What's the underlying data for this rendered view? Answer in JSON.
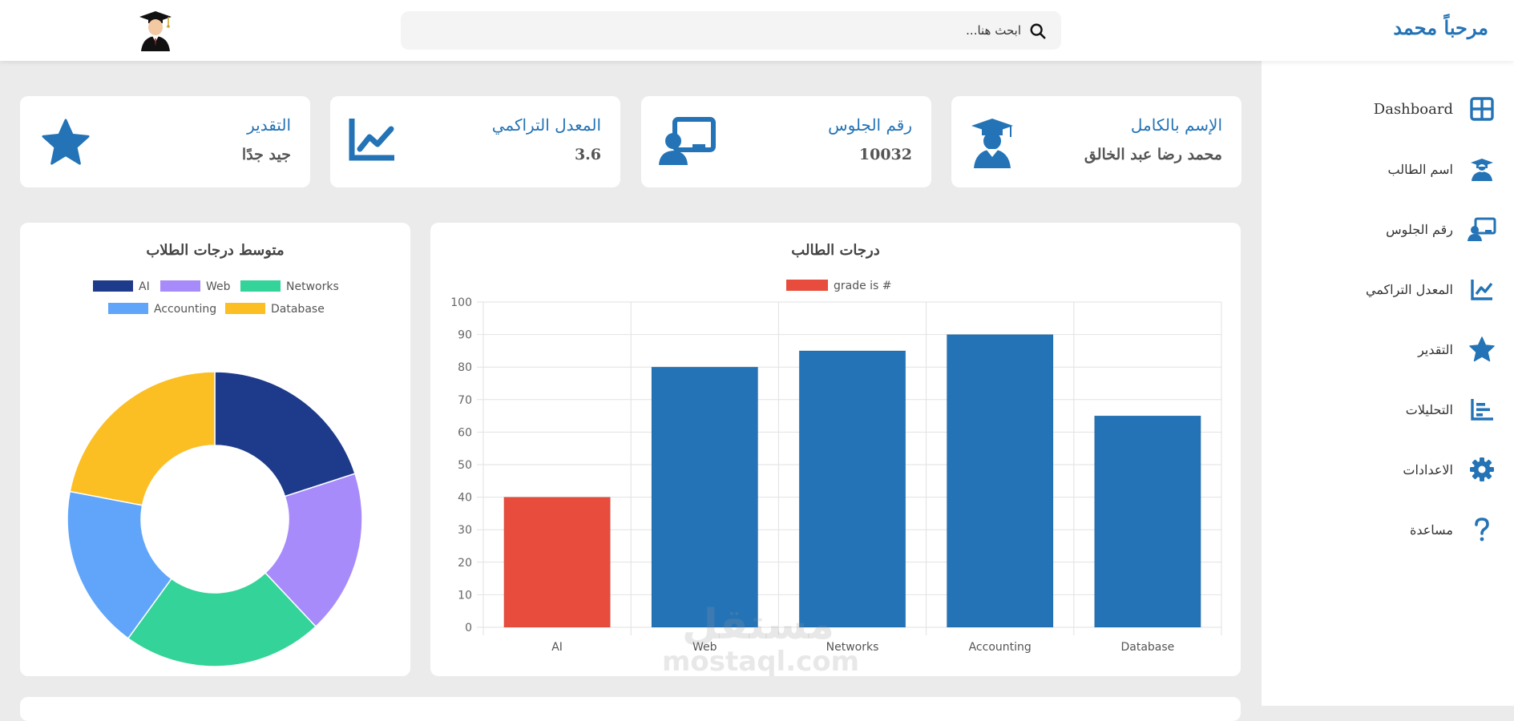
{
  "header": {
    "brand": "مرحباً محمد",
    "search_placeholder": "ابحث هنا..."
  },
  "sidebar": {
    "items": [
      {
        "label": "Dashboard",
        "icon": "grid-icon"
      },
      {
        "label": "اسم الطالب",
        "icon": "graduate-icon"
      },
      {
        "label": "رقم الجلوس",
        "icon": "teacher-board-icon"
      },
      {
        "label": "المعدل التراكمي",
        "icon": "chart-line-icon"
      },
      {
        "label": "التقدير",
        "icon": "star-icon"
      },
      {
        "label": "التحليلات",
        "icon": "bar-list-icon"
      },
      {
        "label": "الاعدادات",
        "icon": "gear-icon"
      },
      {
        "label": "مساعدة",
        "icon": "question-icon"
      }
    ]
  },
  "cards": [
    {
      "title": "الإسم بالكامل",
      "value": "محمد رضا عبد الخالق",
      "icon": "graduate-icon"
    },
    {
      "title": "رقم الجلوس",
      "value": "10032",
      "icon": "teacher-board-icon"
    },
    {
      "title": "المعدل التراكمي",
      "value": "3.6",
      "icon": "chart-line-icon"
    },
    {
      "title": "التقدير",
      "value": "جيد جدًا",
      "icon": "star-icon"
    }
  ],
  "watermark": {
    "ar": "مستقل",
    "en": "mostaql.com"
  },
  "colors": {
    "primary": "#2373b6",
    "red": "#e74c3c"
  },
  "chart_data": [
    {
      "type": "bar",
      "title": "درجات الطالب",
      "legend": "grade is #",
      "categories": [
        "AI",
        "Web",
        "Networks",
        "Accounting",
        "Database"
      ],
      "values": [
        40,
        80,
        85,
        90,
        65
      ],
      "bar_colors": [
        "#e74c3c",
        "#2373b6",
        "#2373b6",
        "#2373b6",
        "#2373b6"
      ],
      "legend_color": "#e74c3c",
      "ylim": [
        0,
        100
      ],
      "yticks": [
        0,
        10,
        20,
        30,
        40,
        50,
        60,
        70,
        80,
        90,
        100
      ],
      "grid": true
    },
    {
      "type": "pie",
      "title": "متوسط درجات الطلاب",
      "categories": [
        "AI",
        "Web",
        "Networks",
        "Accounting",
        "Database"
      ],
      "values": [
        20,
        18,
        22,
        18,
        22
      ],
      "colors": [
        "#1e3a8a",
        "#a78bfa",
        "#34d399",
        "#60a5fa",
        "#fbbf24"
      ],
      "donut": true,
      "legend_placement": "top"
    }
  ]
}
